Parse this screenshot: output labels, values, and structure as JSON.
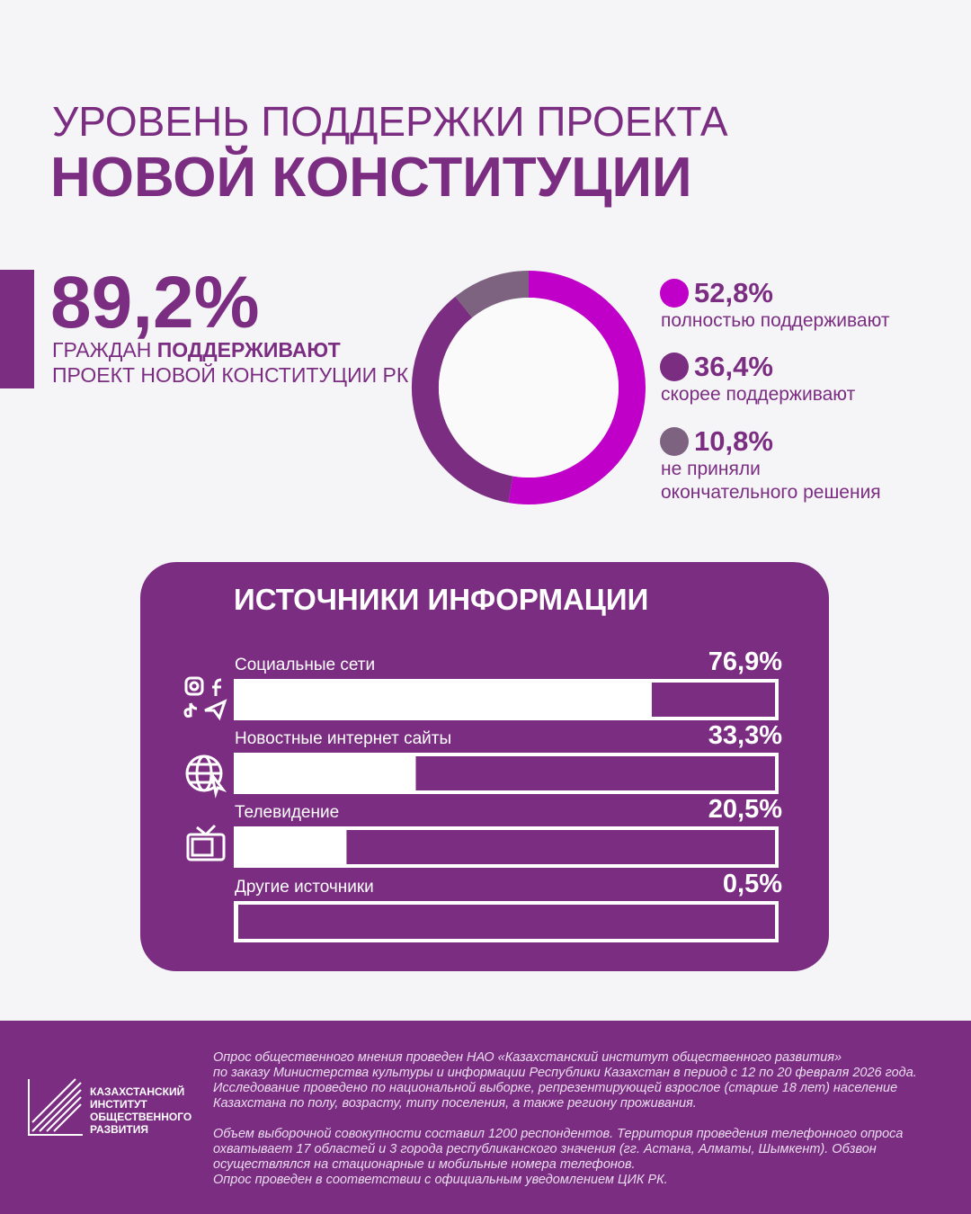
{
  "header": {
    "title_line1": "УРОВЕНЬ ПОДДЕРЖКИ ПРОЕКТА",
    "title_line2": "НОВОЙ КОНСТИТУЦИИ"
  },
  "highlight": {
    "value": "89,2%",
    "text_part1": "ГРАЖДАН ",
    "text_bold": "ПОДДЕРЖИВАЮТ",
    "text_line2": "ПРОЕКТ НОВОЙ КОНСТИТУЦИИ РК"
  },
  "chart_data": [
    {
      "type": "donut",
      "categories": [
        "полностью поддерживают",
        "скорее поддерживают",
        "не приняли\nокончательного решения"
      ],
      "values": [
        52.8,
        36.4,
        10.8
      ],
      "value_labels": [
        "52,8%",
        "36,4%",
        "10,8%"
      ],
      "colors": [
        "#c000c8",
        "#7b2d82",
        "#7e6380"
      ]
    },
    {
      "type": "hbar",
      "title": "ИСТОЧНИКИ ИНФОРМАЦИИ",
      "categories": [
        "Социальные сети",
        "Новостные интернет сайты",
        "Телевидение",
        "Другие источники"
      ],
      "values": [
        76.9,
        33.3,
        20.5,
        0.5
      ],
      "value_labels": [
        "76,9%",
        "33,3%",
        "20,5%",
        "0,5%"
      ],
      "xlim": [
        0,
        100
      ],
      "color": "#ffffff"
    }
  ],
  "footer": {
    "logo": [
      "КАЗАХСТАНСКИЙ",
      "ИНСТИТУТ",
      "ОБЩЕСТВЕННОГО",
      "РАЗВИТИЯ"
    ],
    "lines": [
      "Опрос общественного мнения проведен НАО «Казахстанский институт общественного развития»",
      "по заказу Министерства культуры и информации Республики Казахстан в период с 12 по 20 февраля 2026 года.",
      "Исследование проведено по национальной выборке, репрезентирующей взрослое (старше 18 лет) население",
      "Казахстана по полу, возрасту, типу поселения, а также региону проживания.",
      "Объем выборочной совокупности составил 1200 респондентов. Территория проведения телефонного опроса",
      "охватывает 17 областей и 3 города республиканского значения (гг. Астана, Алматы, Шымкент). Обзвон",
      "осуществлялся на стационарные и мобильные номера телефонов.",
      "Опрос проведен в соответствии с официальным уведомлением ЦИК РК."
    ]
  }
}
